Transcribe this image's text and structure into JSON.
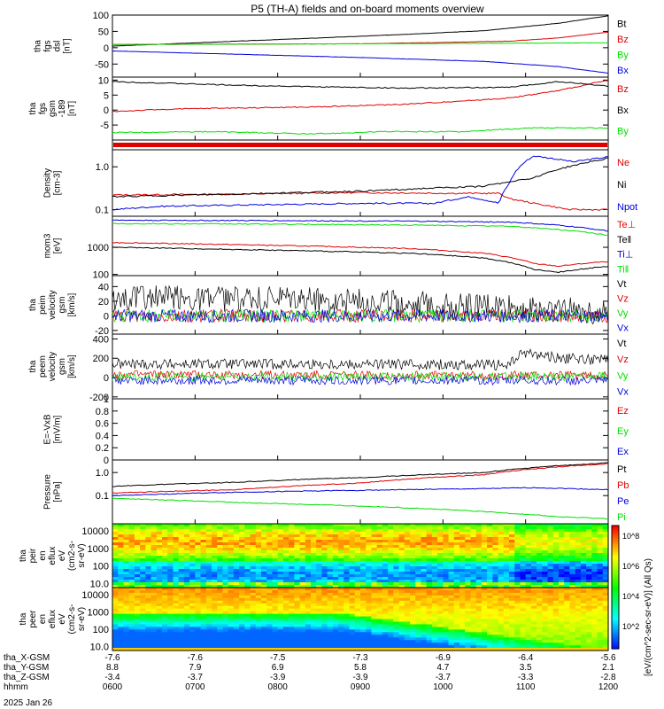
{
  "figure": {
    "title": "P5 (TH-A) fields and on-board moments overview",
    "date": "2025 Jan 26"
  },
  "colors": {
    "black": "#000000",
    "red": "#e00000",
    "green": "#00e000",
    "blue": "#0000e0"
  },
  "colorbar": {
    "label": "[eV/(cm^2-sec-sr-eV)] (All Qs)",
    "ticks": [
      "10^8",
      "10^6",
      "10^4",
      "10^2"
    ]
  },
  "chart_data": [
    {
      "id": "fgs_dsl",
      "type": "line",
      "ylabel": [
        "tha",
        "fgs",
        "dsl",
        "[nT]"
      ],
      "ylim": [
        -90,
        100
      ],
      "yscale": "linear",
      "ticks": [
        100,
        50,
        0,
        -50
      ],
      "series": [
        {
          "name": "Bt",
          "color": "black",
          "x": [
            0,
            0.25,
            0.5,
            0.75,
            0.9,
            1
          ],
          "values": [
            5,
            20,
            35,
            52,
            75,
            98
          ]
        },
        {
          "name": "Bz",
          "color": "red",
          "x": [
            0,
            0.5,
            0.8,
            0.9,
            1
          ],
          "values": [
            10,
            12,
            20,
            30,
            48
          ]
        },
        {
          "name": "By",
          "color": "green",
          "x": [
            0,
            0.5,
            1
          ],
          "values": [
            10,
            12,
            15
          ]
        },
        {
          "name": "Bx",
          "color": "blue",
          "x": [
            0,
            0.25,
            0.5,
            0.75,
            0.9,
            1
          ],
          "values": [
            -10,
            -20,
            -30,
            -42,
            -58,
            -78
          ]
        }
      ]
    },
    {
      "id": "fgs_gsm",
      "type": "line",
      "ylabel": [
        "tha",
        "fgs",
        "gsm",
        "-189",
        "[nT]"
      ],
      "ylim": [
        -10,
        11
      ],
      "yscale": "linear",
      "ticks": [
        10,
        5,
        0,
        -5
      ],
      "series": [
        {
          "name": "Bz",
          "color": "red",
          "x": [
            0,
            0.1,
            0.2,
            0.4,
            0.6,
            0.8,
            0.9,
            1
          ],
          "values": [
            -0.5,
            0.2,
            0.6,
            1.0,
            2.0,
            4.0,
            6.5,
            10
          ]
        },
        {
          "name": "Bx",
          "color": "black",
          "x": [
            0,
            0.1,
            0.25,
            0.4,
            0.6,
            0.8,
            0.9,
            1
          ],
          "values": [
            9.5,
            9.0,
            8.3,
            7.8,
            7.3,
            7.6,
            9.5,
            8.0
          ]
        },
        {
          "name": "By",
          "color": "green",
          "x": [
            0,
            0.2,
            0.4,
            0.55,
            0.7,
            0.85,
            1
          ],
          "values": [
            -7.5,
            -7.2,
            -8.0,
            -7.2,
            -7.2,
            -6.0,
            -6.0
          ]
        }
      ]
    },
    {
      "id": "flag_bar",
      "type": "bar",
      "series": [
        {
          "color": "red",
          "x": [
            0,
            1
          ]
        }
      ]
    },
    {
      "id": "density",
      "type": "line",
      "ylabel": [
        "Density",
        "[cm-3]"
      ],
      "ylim": [
        0.07,
        2.5
      ],
      "yscale": "log",
      "ticks": [
        1.0,
        0.1
      ],
      "series": [
        {
          "name": "Ne",
          "color": "red",
          "x": [
            0,
            0.25,
            0.5,
            0.7,
            0.78,
            0.8,
            0.85,
            0.92,
            1
          ],
          "values": [
            0.22,
            0.23,
            0.25,
            0.24,
            0.24,
            0.18,
            0.14,
            0.1,
            0.1
          ]
        },
        {
          "name": "Ni",
          "color": "black",
          "x": [
            0,
            0.25,
            0.5,
            0.75,
            0.85,
            0.95,
            1
          ],
          "values": [
            0.2,
            0.23,
            0.27,
            0.35,
            0.55,
            1.2,
            1.6
          ]
        },
        {
          "name": "Npot",
          "color": "blue",
          "x": [
            0,
            0.1,
            0.3,
            0.5,
            0.65,
            0.72,
            0.78,
            0.8,
            0.85,
            0.93,
            1
          ],
          "values": [
            0.1,
            0.12,
            0.13,
            0.14,
            0.14,
            0.2,
            0.14,
            0.4,
            1.8,
            1.3,
            1.7
          ]
        }
      ]
    },
    {
      "id": "mom_temp",
      "type": "line",
      "ylabel": [
        "mom3",
        "[eV]"
      ],
      "ylim": [
        90,
        14000
      ],
      "yscale": "log",
      "ticks": [
        1000,
        100
      ],
      "series": [
        {
          "name": "Te⊥",
          "color": "red",
          "x": [
            0,
            0.3,
            0.6,
            0.75,
            0.85,
            0.9,
            1
          ],
          "values": [
            1500,
            1200,
            900,
            600,
            250,
            200,
            300
          ]
        },
        {
          "name": "Te‖",
          "color": "black",
          "x": [
            0,
            0.3,
            0.6,
            0.75,
            0.85,
            0.9,
            1
          ],
          "values": [
            1000,
            800,
            600,
            400,
            150,
            120,
            200
          ]
        },
        {
          "name": "Ti⊥",
          "color": "blue",
          "x": [
            0,
            0.3,
            0.6,
            0.8,
            0.9,
            1
          ],
          "values": [
            10000,
            9700,
            9200,
            8500,
            6500,
            4000
          ]
        },
        {
          "name": "Ti‖",
          "color": "green",
          "x": [
            0,
            0.3,
            0.6,
            0.8,
            0.9,
            1
          ],
          "values": [
            7500,
            7200,
            6600,
            6000,
            4500,
            2800
          ]
        }
      ]
    },
    {
      "id": "peim_velocity",
      "type": "line",
      "ylabel": [
        "tha",
        "peim",
        "velocity",
        "gsm",
        "[km/s]"
      ],
      "ylim": [
        -25,
        55
      ],
      "yscale": "linear",
      "ticks": [
        40,
        20,
        0,
        -20
      ],
      "series": [
        {
          "name": "Vt",
          "color": "black",
          "x": [
            0,
            0.5,
            1
          ],
          "values": [
            25,
            20,
            5
          ]
        },
        {
          "name": "Vz",
          "color": "red",
          "x": [
            0,
            0.5,
            1
          ],
          "values": [
            0,
            0,
            0
          ]
        },
        {
          "name": "Vy",
          "color": "green",
          "x": [
            0,
            0.5,
            1
          ],
          "values": [
            0,
            0,
            0
          ]
        },
        {
          "name": "Vx",
          "color": "blue",
          "x": [
            0,
            0.5,
            1
          ],
          "values": [
            0,
            0,
            0
          ]
        }
      ]
    },
    {
      "id": "peem_velocity",
      "type": "line",
      "ylabel": [
        "tha",
        "peem",
        "velocity",
        "gsm",
        "[km/s]"
      ],
      "ylim": [
        -220,
        450
      ],
      "yscale": "linear",
      "ticks": [
        400,
        200,
        0,
        -200
      ],
      "series": [
        {
          "name": "Vt",
          "color": "black",
          "x": [
            0,
            0.5,
            0.8,
            0.83,
            0.9,
            1
          ],
          "values": [
            140,
            140,
            130,
            260,
            200,
            180
          ]
        },
        {
          "name": "Vz",
          "color": "red",
          "x": [
            0,
            0.5,
            1
          ],
          "values": [
            30,
            25,
            20
          ]
        },
        {
          "name": "Vy",
          "color": "green",
          "x": [
            0,
            0.5,
            1
          ],
          "values": [
            10,
            10,
            10
          ]
        },
        {
          "name": "Vx",
          "color": "blue",
          "x": [
            0,
            0.5,
            1
          ],
          "values": [
            -30,
            -30,
            -30
          ]
        }
      ]
    },
    {
      "id": "efield",
      "type": "line",
      "ylabel": [
        "E=-VxB",
        "[mV/m]"
      ],
      "ylim": [
        0,
        1.0
      ],
      "yscale": "linear",
      "ticks": [
        1.0,
        0.8,
        0.6,
        0.4,
        0.2,
        0.0
      ],
      "series": [
        {
          "name": "Ez",
          "color": "red",
          "x": [],
          "values": []
        },
        {
          "name": "Ey",
          "color": "green",
          "x": [],
          "values": []
        },
        {
          "name": "Ex",
          "color": "blue",
          "x": [],
          "values": []
        }
      ]
    },
    {
      "id": "pressure",
      "type": "line",
      "ylabel": [
        "Pressure",
        "[nPa]"
      ],
      "ylim": [
        0.006,
        3.5
      ],
      "yscale": "log",
      "ticks": [
        1.0,
        0.1
      ],
      "series": [
        {
          "name": "Pt",
          "color": "black",
          "x": [
            0,
            0.25,
            0.5,
            0.75,
            1
          ],
          "values": [
            0.25,
            0.38,
            0.6,
            1.0,
            2.6
          ]
        },
        {
          "name": "Pb",
          "color": "red",
          "x": [
            0,
            0.25,
            0.5,
            0.75,
            1
          ],
          "values": [
            0.13,
            0.18,
            0.35,
            0.8,
            2.4
          ]
        },
        {
          "name": "Pe",
          "color": "blue",
          "x": [
            0,
            0.25,
            0.5,
            0.75,
            0.85,
            1
          ],
          "values": [
            0.1,
            0.14,
            0.17,
            0.2,
            0.22,
            0.18
          ]
        },
        {
          "name": "Pi",
          "color": "green",
          "x": [
            0,
            0.25,
            0.5,
            0.75,
            0.9,
            1
          ],
          "values": [
            0.075,
            0.05,
            0.035,
            0.02,
            0.012,
            0.01
          ]
        }
      ]
    },
    {
      "id": "peir_spec",
      "type": "heatmap",
      "ylabel": [
        "tha",
        "peir",
        "en",
        "eflux",
        "eV",
        "(cm2-s-",
        "sr-eV)"
      ],
      "ylim": [
        6,
        25000
      ],
      "yscale": "log",
      "ticks": [
        10000,
        1000,
        100,
        10
      ]
    },
    {
      "id": "peer_spec",
      "type": "heatmap",
      "ylabel": [
        "tha",
        "peer",
        "en",
        "eflux",
        "eV",
        "(cm2-s-",
        "sr-eV)"
      ],
      "ylim": [
        6,
        25000
      ],
      "yscale": "log",
      "ticks": [
        10000,
        1000,
        100,
        10
      ]
    }
  ],
  "xaxis": {
    "rows": [
      {
        "label": "tha_X-GSM",
        "values": [
          "-7.6",
          "-7.6",
          "-7.5",
          "-7.3",
          "-6.9",
          "-6.4",
          "-5.6"
        ]
      },
      {
        "label": "tha_Y-GSM",
        "values": [
          "8.8",
          "7.9",
          "6.9",
          "5.8",
          "4.7",
          "3.5",
          "2.1"
        ]
      },
      {
        "label": "tha_Z-GSM",
        "values": [
          "-3.4",
          "-3.7",
          "-3.9",
          "-3.9",
          "-3.7",
          "-3.3",
          "-2.8"
        ]
      },
      {
        "label": "hhmm",
        "values": [
          "0600",
          "0700",
          "0800",
          "0900",
          "1000",
          "1100",
          "1200"
        ]
      }
    ]
  }
}
